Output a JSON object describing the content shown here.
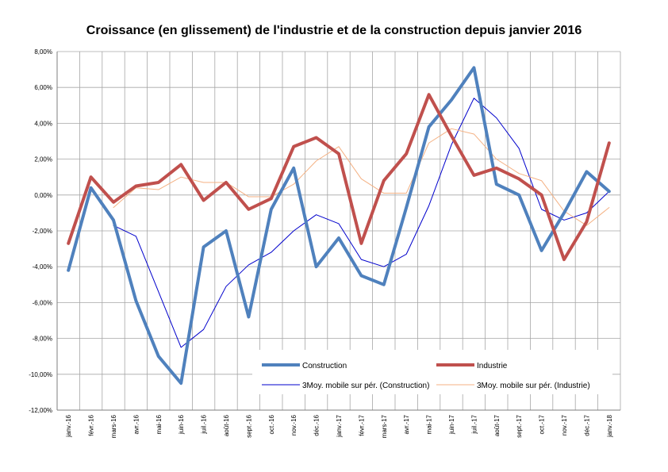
{
  "chart_data": {
    "type": "line",
    "title": "Croissance (en glissement) de l'industrie et de la construction depuis janvier 2016",
    "xlabel": "",
    "ylabel": "",
    "categories": [
      "janv.-16",
      "févr.-16",
      "mars-16",
      "avr.-16",
      "mai-16",
      "juin-16",
      "juil.-16",
      "août-16",
      "sept.-16",
      "oct.-16",
      "nov.-16",
      "déc.-16",
      "janv.-17",
      "févr.-17",
      "mars-17",
      "avr.-17",
      "mai-17",
      "juin-17",
      "juil.-17",
      "août-17",
      "sept.-17",
      "oct.-17",
      "nov.-17",
      "déc.-17",
      "janv.-18"
    ],
    "ylim": [
      -12,
      8
    ],
    "yticks": [
      "8,00%",
      "6,00%",
      "4,00%",
      "2,00%",
      "0,00%",
      "-2,00%",
      "-4,00%",
      "-6,00%",
      "-8,00%",
      "-10,00%",
      "-12,00%"
    ],
    "ytick_values": [
      8,
      6,
      4,
      2,
      0,
      -2,
      -4,
      -6,
      -8,
      -10,
      -12
    ],
    "grid": true,
    "legend_position": "bottom-right",
    "series": [
      {
        "name": "Construction",
        "color": "#4f81bd",
        "width": 4,
        "values": [
          -4.2,
          0.4,
          -1.4,
          -5.9,
          -9.0,
          -10.5,
          -2.9,
          -2.0,
          -6.8,
          -0.8,
          1.5,
          -4.0,
          -2.4,
          -4.5,
          -5.0,
          -0.7,
          3.8,
          5.3,
          7.1,
          0.6,
          0.0,
          -3.1,
          -1.0,
          1.3,
          0.2
        ]
      },
      {
        "name": "Industrie",
        "color": "#c0504d",
        "width": 4,
        "values": [
          -2.7,
          1.0,
          -0.4,
          0.5,
          0.7,
          1.7,
          -0.3,
          0.7,
          -0.8,
          -0.2,
          2.7,
          3.2,
          2.3,
          -2.7,
          0.8,
          2.3,
          5.6,
          3.3,
          1.1,
          1.5,
          0.9,
          0.0,
          -3.6,
          -1.5,
          2.9
        ]
      },
      {
        "name": "3Moy. mobile sur pér. (Construction)",
        "color": "#0000cc",
        "width": 1,
        "values": [
          null,
          null,
          -1.7,
          -2.3,
          -5.4,
          -8.5,
          -7.5,
          -5.1,
          -3.9,
          -3.2,
          -2.0,
          -1.1,
          -1.6,
          -3.6,
          -4.0,
          -3.3,
          -0.6,
          2.8,
          5.4,
          4.3,
          2.6,
          -0.8,
          -1.4,
          -1.0,
          0.2
        ]
      },
      {
        "name": "3Moy. mobile sur pér. (Industrie)",
        "color": "#f4b183",
        "width": 1,
        "values": [
          null,
          null,
          -0.7,
          0.4,
          0.3,
          1.0,
          0.7,
          0.7,
          -0.1,
          -0.1,
          0.6,
          1.9,
          2.7,
          0.9,
          0.1,
          0.1,
          2.9,
          3.7,
          3.4,
          2.0,
          1.2,
          0.8,
          -0.9,
          -1.7,
          -0.7
        ]
      }
    ]
  }
}
